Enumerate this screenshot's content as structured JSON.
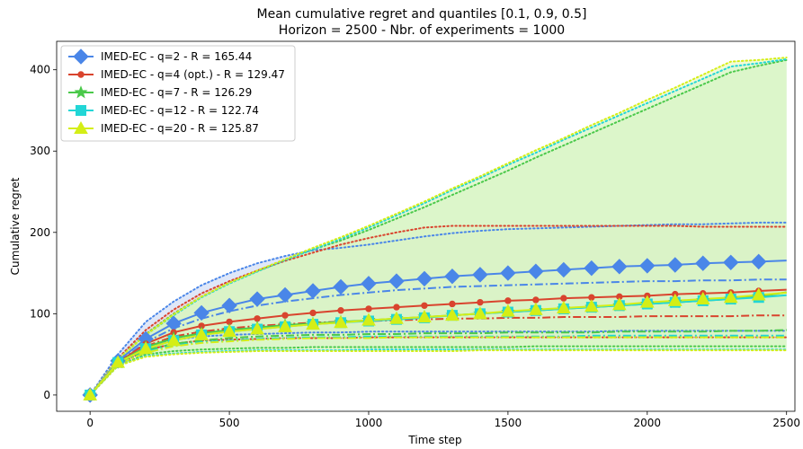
{
  "chart_data": {
    "type": "line",
    "title": "Mean cumulative regret and quantiles [0.1, 0.9, 0.5]",
    "subtitle": "Horizon = 2500 - Nbr. of experiments = 1000",
    "xlabel": "Time step",
    "ylabel": "Cumulative regret",
    "xlim": [
      -120,
      2530
    ],
    "ylim": [
      -20,
      435
    ],
    "xticks": [
      0,
      500,
      1000,
      1500,
      2000,
      2500
    ],
    "yticks": [
      0,
      100,
      200,
      300,
      400
    ],
    "legend_position": "top-left",
    "x": [
      0,
      100,
      200,
      300,
      400,
      500,
      600,
      700,
      800,
      900,
      1000,
      1100,
      1200,
      1300,
      1400,
      1500,
      1600,
      1700,
      1800,
      1900,
      2000,
      2100,
      2200,
      2300,
      2400,
      2500
    ],
    "series": [
      {
        "name": "IMED-EC - q=2 - R = 165.44",
        "color": "#4a86e8",
        "band_color": "#c4d3f2",
        "marker": "diamond",
        "values": [
          0,
          42,
          69,
          88,
          101,
          110,
          118,
          123,
          128,
          133,
          137,
          140,
          143,
          146,
          148,
          150,
          152,
          154,
          156,
          158,
          159,
          160,
          162,
          163,
          164,
          165.4
        ],
        "q10": [
          0,
          38,
          58,
          68,
          72,
          74,
          75,
          76,
          77,
          77,
          78,
          78,
          78,
          78,
          78,
          78,
          78,
          78,
          78,
          79,
          79,
          79,
          79,
          79,
          79,
          79
        ],
        "q90": [
          0,
          50,
          90,
          115,
          135,
          150,
          162,
          171,
          178,
          181,
          185,
          190,
          195,
          199,
          202,
          204,
          205,
          206,
          207,
          208,
          209,
          210,
          210,
          211,
          212,
          212
        ],
        "median": [
          0,
          40,
          65,
          82,
          94,
          103,
          110,
          115,
          119,
          123,
          126,
          129,
          131,
          133,
          134,
          135,
          136,
          137,
          138,
          139,
          140,
          140,
          141,
          141,
          142,
          142
        ]
      },
      {
        "name": "IMED-EC - q=4 (opt.) - R = 129.47",
        "color": "#d9442e",
        "band_color": "#f2cfc9",
        "marker": "circle",
        "values": [
          0,
          40,
          63,
          77,
          85,
          90,
          94,
          98,
          101,
          104,
          106,
          108,
          110,
          112,
          114,
          116,
          117,
          119,
          120,
          121,
          122,
          124,
          125,
          126,
          128,
          129.5
        ],
        "q10": [
          0,
          37,
          55,
          63,
          67,
          68,
          69,
          70,
          70,
          70,
          71,
          71,
          71,
          71,
          71,
          71,
          71,
          71,
          71,
          71,
          71,
          71,
          71,
          71,
          71,
          71
        ],
        "q90": [
          0,
          45,
          80,
          105,
          125,
          140,
          153,
          165,
          175,
          185,
          193,
          200,
          206,
          208,
          208,
          208,
          208,
          208,
          208,
          208,
          208,
          208,
          207,
          207,
          207,
          207
        ],
        "median": [
          0,
          38,
          60,
          72,
          78,
          82,
          85,
          87,
          89,
          90,
          91,
          92,
          93,
          94,
          94,
          95,
          95,
          96,
          96,
          96,
          97,
          97,
          97,
          97,
          98,
          98
        ]
      },
      {
        "name": "IMED-EC - q=7 - R = 126.29",
        "color": "#4ac94a",
        "band_color": "#c6f0c0",
        "marker": "star",
        "values": [
          0,
          40,
          59,
          70,
          76,
          80,
          83,
          86,
          88,
          90,
          92,
          94,
          96,
          98,
          100,
          102,
          104,
          106,
          108,
          110,
          112,
          114,
          116,
          118,
          121,
          126.3
        ],
        "q10": [
          0,
          36,
          50,
          54,
          56,
          57,
          58,
          58,
          59,
          59,
          59,
          59,
          59,
          59,
          59,
          59,
          60,
          60,
          60,
          60,
          60,
          60,
          60,
          60,
          60,
          60
        ],
        "q90": [
          0,
          44,
          75,
          100,
          121,
          138,
          152,
          166,
          179,
          190,
          203,
          217,
          231,
          246,
          261,
          276,
          292,
          307,
          322,
          337,
          352,
          367,
          382,
          397,
          405,
          412
        ],
        "median": [
          0,
          38,
          55,
          63,
          67,
          70,
          72,
          73,
          74,
          74,
          75,
          75,
          76,
          76,
          76,
          77,
          77,
          77,
          77,
          78,
          78,
          78,
          78,
          79,
          79,
          80
        ]
      },
      {
        "name": "IMED-EC - q=12 - R = 122.74",
        "color": "#22d6d6",
        "band_color": "#bff3ef",
        "marker": "square",
        "values": [
          0,
          40,
          57,
          67,
          74,
          78,
          81,
          84,
          87,
          89,
          91,
          93,
          95,
          98,
          100,
          102,
          104,
          106,
          108,
          110,
          112,
          114,
          116,
          118,
          120,
          122.7
        ],
        "q10": [
          0,
          36,
          48,
          51,
          53,
          54,
          55,
          55,
          55,
          55,
          56,
          56,
          56,
          56,
          56,
          56,
          56,
          56,
          56,
          56,
          56,
          56,
          56,
          56,
          56,
          56
        ],
        "q90": [
          0,
          44,
          74,
          98,
          120,
          137,
          152,
          166,
          179,
          192,
          206,
          221,
          236,
          252,
          267,
          283,
          298,
          314,
          329,
          344,
          359,
          374,
          389,
          404,
          408,
          413
        ],
        "median": [
          0,
          38,
          53,
          61,
          65,
          67,
          69,
          70,
          71,
          71,
          72,
          72,
          72,
          72,
          72,
          72,
          72,
          72,
          73,
          73,
          73,
          73,
          73,
          73,
          73,
          73
        ]
      },
      {
        "name": "IMED-EC - q=20 - R = 125.87",
        "color": "#d4ee16",
        "band_color": "#e8f8b3",
        "marker": "triangle",
        "values": [
          0,
          40,
          57,
          67,
          74,
          78,
          81,
          84,
          87,
          89,
          92,
          94,
          96,
          98,
          100,
          103,
          105,
          107,
          109,
          111,
          114,
          116,
          118,
          120,
          123,
          125.9
        ],
        "q10": [
          0,
          36,
          47,
          50,
          52,
          53,
          54,
          54,
          54,
          54,
          54,
          54,
          54,
          54,
          55,
          55,
          55,
          55,
          55,
          55,
          55,
          55,
          55,
          55,
          55,
          55
        ],
        "q90": [
          0,
          44,
          74,
          99,
          121,
          138,
          153,
          167,
          181,
          194,
          208,
          223,
          238,
          254,
          269,
          285,
          301,
          316,
          332,
          347,
          363,
          378,
          394,
          410,
          412,
          415
        ],
        "median": [
          0,
          38,
          52,
          60,
          64,
          66,
          68,
          69,
          70,
          70,
          70,
          71,
          71,
          71,
          71,
          71,
          71,
          71,
          71,
          71,
          71,
          71,
          71,
          71,
          71,
          71
        ]
      }
    ]
  }
}
